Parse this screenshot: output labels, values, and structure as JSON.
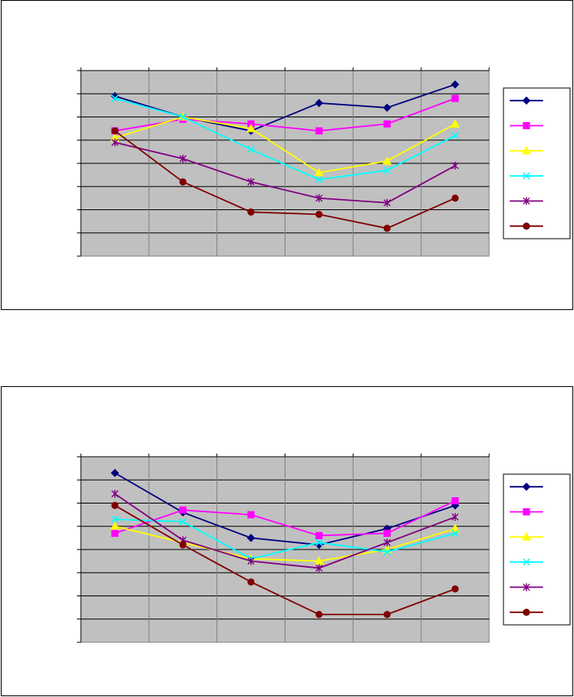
{
  "chart_data": [
    {
      "type": "line",
      "title": "",
      "xlabel": "",
      "ylabel": "",
      "categories": [
        "",
        "",
        "",
        "",
        "",
        ""
      ],
      "ylim": [
        0,
        8
      ],
      "grid": true,
      "legend_position": "right",
      "series": [
        {
          "values": [
            6.9,
            6.0,
            5.4,
            6.6,
            6.4,
            7.4
          ],
          "color": "#000080",
          "marker": "diamond"
        },
        {
          "values": [
            5.4,
            5.9,
            5.7,
            5.4,
            5.7,
            6.8
          ],
          "color": "#ff00ff",
          "marker": "square"
        },
        {
          "values": [
            5.1,
            6.0,
            5.5,
            3.6,
            4.1,
            5.7
          ],
          "color": "#ffff00",
          "marker": "triangle"
        },
        {
          "values": [
            6.8,
            6.0,
            4.6,
            3.3,
            3.7,
            5.2
          ],
          "color": "#00ffff",
          "marker": "x"
        },
        {
          "values": [
            4.9,
            4.2,
            3.2,
            2.5,
            2.3,
            3.9
          ],
          "color": "#800080",
          "marker": "star"
        },
        {
          "values": [
            5.4,
            3.2,
            1.9,
            1.8,
            1.2,
            2.5
          ],
          "color": "#800000",
          "marker": "circle"
        }
      ]
    },
    {
      "type": "line",
      "title": "",
      "xlabel": "",
      "ylabel": "",
      "categories": [
        "",
        "",
        "",
        "",
        "",
        ""
      ],
      "ylim": [
        0,
        8
      ],
      "grid": true,
      "legend_position": "right",
      "series": [
        {
          "values": [
            7.3,
            5.6,
            4.5,
            4.2,
            4.9,
            5.9
          ],
          "color": "#000080",
          "marker": "diamond"
        },
        {
          "values": [
            4.7,
            5.7,
            5.5,
            4.6,
            4.7,
            6.1
          ],
          "color": "#ff00ff",
          "marker": "square"
        },
        {
          "values": [
            5.0,
            4.3,
            3.6,
            3.5,
            4.0,
            4.9
          ],
          "color": "#ffff00",
          "marker": "triangle"
        },
        {
          "values": [
            5.3,
            5.2,
            3.6,
            4.3,
            3.9,
            4.7
          ],
          "color": "#00ffff",
          "marker": "x"
        },
        {
          "values": [
            6.4,
            4.4,
            3.5,
            3.2,
            4.3,
            5.4
          ],
          "color": "#800080",
          "marker": "star"
        },
        {
          "values": [
            5.9,
            4.2,
            2.6,
            1.2,
            1.2,
            2.3
          ],
          "color": "#800000",
          "marker": "circle"
        }
      ]
    }
  ]
}
